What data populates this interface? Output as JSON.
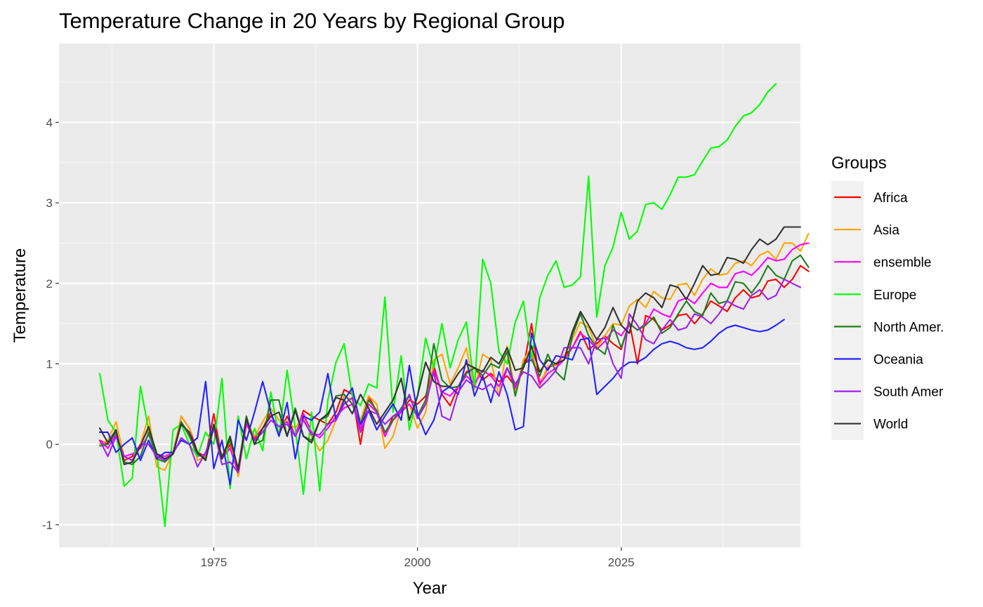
{
  "chart_data": {
    "type": "line",
    "title": "Temperature Change in 20 Years by Regional Group",
    "xlabel": "Year",
    "ylabel": "Temperature",
    "xlim": [
      1956,
      2047
    ],
    "ylim": [
      -1.28,
      4.98
    ],
    "x_ticks": [
      1975,
      2000,
      2025
    ],
    "x_tick_labels": [
      "1975",
      "2000",
      "2025"
    ],
    "y_ticks": [
      -1,
      0,
      1,
      2,
      3,
      4
    ],
    "y_tick_labels": [
      "-1",
      "0",
      "1",
      "2",
      "3",
      "4"
    ],
    "grid": true,
    "legend_title": "Groups",
    "legend_position": "right",
    "x_start": 1961,
    "x_end": 2044,
    "series": [
      {
        "name": "Africa",
        "color": "#FF0000",
        "values": [
          0.05,
          0.0,
          0.15,
          -0.2,
          -0.15,
          0.0,
          0.2,
          -0.15,
          -0.2,
          -0.12,
          0.35,
          0.2,
          -0.1,
          -0.15,
          0.38,
          -0.18,
          0.0,
          -0.35,
          0.25,
          0.08,
          0.2,
          0.4,
          0.12,
          0.35,
          0.1,
          0.42,
          0.35,
          0.3,
          0.25,
          0.4,
          0.68,
          0.62,
          0.0,
          0.6,
          0.4,
          0.1,
          0.35,
          0.4,
          0.55,
          0.5,
          0.6,
          0.98,
          0.62,
          0.48,
          0.72,
          0.9,
          0.95,
          0.8,
          0.88,
          0.78,
          0.85,
          0.72,
          0.95,
          1.5,
          0.75,
          0.95,
          1.0,
          1.1,
          1.2,
          1.4,
          1.18,
          1.25,
          1.35,
          1.25,
          1.18,
          1.52,
          1.0,
          1.6,
          1.55,
          1.42,
          1.48,
          1.6,
          1.62,
          1.5,
          1.62,
          1.78,
          1.72,
          1.65,
          1.82,
          1.92,
          1.82,
          1.85,
          2.03,
          2.05,
          1.95,
          2.05,
          2.22,
          2.15
        ]
      },
      {
        "name": "Asia",
        "color": "#FFA500",
        "values": [
          0.0,
          0.05,
          0.28,
          -0.15,
          -0.2,
          0.0,
          0.35,
          -0.28,
          -0.32,
          -0.1,
          0.35,
          0.2,
          -0.2,
          -0.15,
          0.25,
          -0.15,
          0.05,
          -0.4,
          0.3,
          0.1,
          0.28,
          0.45,
          0.3,
          0.28,
          0.2,
          0.35,
          0.1,
          -0.08,
          0.05,
          0.3,
          0.6,
          0.55,
          0.3,
          0.6,
          0.5,
          -0.05,
          0.1,
          0.45,
          0.5,
          0.2,
          0.4,
          1.05,
          1.12,
          0.75,
          0.95,
          1.2,
          0.68,
          1.12,
          1.05,
          0.6,
          1.22,
          0.65,
          1.05,
          1.2,
          0.72,
          0.98,
          0.98,
          1.1,
          1.3,
          1.52,
          1.45,
          1.2,
          1.35,
          1.5,
          1.48,
          1.72,
          1.8,
          1.7,
          1.9,
          1.82,
          1.8,
          1.98,
          2.0,
          1.85,
          2.05,
          2.18,
          2.1,
          2.12,
          2.25,
          2.28,
          2.22,
          2.35,
          2.4,
          2.3,
          2.5,
          2.5,
          2.4,
          2.62
        ]
      },
      {
        "name": "ensemble",
        "color": "#FF00FF",
        "values": [
          0.05,
          -0.05,
          0.12,
          -0.15,
          -0.12,
          -0.05,
          0.12,
          -0.12,
          -0.15,
          -0.1,
          0.28,
          0.12,
          -0.15,
          -0.12,
          0.22,
          -0.18,
          -0.05,
          -0.35,
          0.25,
          0.05,
          0.2,
          0.35,
          0.22,
          0.28,
          0.12,
          0.38,
          0.15,
          0.08,
          0.2,
          0.35,
          0.45,
          0.5,
          0.2,
          0.5,
          0.4,
          0.1,
          0.3,
          0.4,
          0.5,
          0.35,
          0.5,
          0.92,
          0.65,
          0.6,
          0.72,
          0.85,
          0.75,
          0.92,
          0.85,
          0.72,
          0.95,
          0.7,
          0.98,
          1.1,
          0.75,
          0.88,
          0.95,
          1.05,
          1.2,
          1.38,
          1.3,
          1.18,
          1.28,
          1.42,
          1.35,
          1.5,
          1.42,
          1.5,
          1.68,
          1.62,
          1.58,
          1.78,
          1.82,
          1.75,
          1.88,
          2.0,
          1.95,
          1.95,
          2.12,
          2.15,
          2.1,
          2.2,
          2.32,
          2.28,
          2.3,
          2.42,
          2.48,
          2.5
        ]
      },
      {
        "name": "Europe",
        "color": "#00FF00",
        "values": [
          0.88,
          0.3,
          0.15,
          -0.52,
          -0.42,
          0.72,
          0.18,
          -0.1,
          -1.02,
          0.18,
          0.25,
          0.0,
          -0.15,
          0.15,
          0.0,
          0.82,
          -0.55,
          0.35,
          -0.18,
          0.2,
          -0.08,
          0.65,
          0.1,
          0.92,
          0.2,
          -0.62,
          0.4,
          -0.58,
          0.55,
          1.02,
          1.25,
          0.6,
          0.48,
          0.75,
          0.7,
          1.83,
          0.4,
          1.1,
          0.18,
          0.6,
          1.32,
          0.95,
          1.5,
          0.95,
          1.3,
          1.52,
          0.7,
          2.3,
          2.0,
          1.15,
          1.0,
          1.52,
          1.78,
          1.05,
          1.82,
          2.1,
          2.28,
          1.95,
          1.98,
          2.08,
          3.33,
          1.58,
          2.22,
          2.45,
          2.88,
          2.55,
          2.65,
          2.98,
          3.0,
          2.92,
          3.1,
          3.32,
          3.32,
          3.35,
          3.52,
          3.68,
          3.7,
          3.78,
          3.95,
          4.08,
          4.12,
          4.22,
          4.38,
          4.48
        ]
      },
      {
        "name": "North Amer.",
        "color": "#1E7F1E",
        "values": [
          -0.02,
          0.0,
          0.15,
          -0.22,
          -0.25,
          -0.15,
          0.15,
          -0.18,
          -0.22,
          -0.12,
          0.28,
          0.1,
          -0.12,
          -0.18,
          0.2,
          -0.15,
          0.05,
          -0.3,
          0.35,
          0.0,
          0.05,
          0.55,
          0.55,
          0.1,
          0.45,
          0.1,
          0.05,
          0.3,
          0.35,
          0.6,
          0.62,
          0.5,
          0.25,
          0.55,
          0.42,
          0.15,
          0.3,
          0.45,
          0.6,
          0.35,
          0.55,
          1.25,
          0.8,
          0.7,
          0.72,
          0.88,
          0.95,
          0.85,
          1.0,
          0.95,
          1.15,
          0.6,
          1.0,
          1.05,
          0.85,
          1.12,
          0.9,
          0.8,
          1.35,
          1.62,
          1.35,
          1.2,
          1.12,
          1.48,
          1.2,
          1.5,
          1.42,
          1.48,
          1.58,
          1.38,
          1.45,
          1.62,
          1.78,
          1.65,
          1.6,
          1.88,
          1.75,
          1.78,
          2.02,
          2.0,
          1.88,
          2.02,
          2.22,
          2.1,
          2.05,
          2.28,
          2.35,
          2.2
        ]
      },
      {
        "name": "Oceania",
        "color": "#2222FF",
        "values": [
          0.15,
          0.15,
          -0.1,
          0.0,
          0.08,
          -0.2,
          0.05,
          -0.18,
          -0.1,
          -0.1,
          0.05,
          0.0,
          0.08,
          0.78,
          -0.3,
          0.05,
          -0.5,
          0.3,
          0.05,
          0.4,
          0.78,
          0.4,
          0.1,
          0.52,
          -0.18,
          0.35,
          0.3,
          0.4,
          0.88,
          0.3,
          0.55,
          0.7,
          0.25,
          0.42,
          0.18,
          0.35,
          0.5,
          0.3,
          0.98,
          0.38,
          0.12,
          0.3,
          0.65,
          0.72,
          0.62,
          1.05,
          0.6,
          0.85,
          0.52,
          0.9,
          0.62,
          0.18,
          0.22,
          1.38,
          1.05,
          0.92,
          1.1,
          1.08,
          1.05,
          1.3,
          1.32,
          0.62,
          0.72,
          0.82,
          0.95,
          1.02,
          1.02,
          1.08,
          1.18,
          1.25,
          1.28,
          1.25,
          1.2,
          1.18,
          1.2,
          1.28,
          1.38,
          1.45,
          1.48,
          1.45,
          1.42,
          1.4,
          1.42,
          1.48,
          1.55
        ]
      },
      {
        "name": "South Amer",
        "color": "#A020F0",
        "values": [
          0.05,
          -0.15,
          0.1,
          -0.15,
          -0.2,
          0.0,
          0.0,
          -0.15,
          -0.2,
          -0.12,
          0.08,
          0.0,
          -0.28,
          -0.1,
          0.2,
          -0.25,
          -0.22,
          -0.35,
          0.3,
          0.05,
          0.15,
          0.3,
          0.22,
          0.25,
          0.1,
          0.3,
          0.12,
          0.12,
          0.25,
          0.3,
          0.5,
          0.58,
          0.15,
          0.42,
          0.38,
          0.25,
          0.35,
          0.42,
          0.62,
          0.32,
          0.5,
          0.9,
          0.35,
          0.3,
          0.65,
          0.8,
          0.72,
          0.68,
          0.75,
          0.6,
          0.95,
          0.75,
          0.9,
          0.85,
          0.7,
          0.8,
          0.92,
          1.2,
          1.2,
          1.2,
          1.0,
          1.3,
          1.32,
          1.0,
          0.82,
          1.62,
          1.48,
          1.3,
          1.25,
          1.42,
          1.55,
          1.42,
          1.45,
          1.62,
          1.58,
          1.5,
          1.62,
          1.78,
          1.72,
          1.68,
          1.85,
          1.92,
          1.8,
          1.85,
          2.05,
          2.0,
          1.95
        ]
      },
      {
        "name": "World",
        "color": "#333333",
        "values": [
          0.2,
          0.02,
          0.18,
          -0.25,
          -0.22,
          -0.02,
          0.22,
          -0.12,
          -0.18,
          -0.12,
          0.25,
          0.15,
          -0.1,
          -0.2,
          0.25,
          -0.18,
          0.1,
          -0.32,
          0.32,
          0.0,
          0.2,
          0.35,
          0.4,
          0.1,
          0.42,
          0.1,
          0.02,
          0.3,
          0.38,
          0.58,
          0.55,
          0.38,
          0.62,
          0.45,
          0.25,
          0.4,
          0.55,
          0.82,
          0.3,
          0.6,
          1.02,
          0.78,
          0.72,
          0.72,
          0.88,
          1.0,
          0.95,
          0.9,
          1.08,
          1.0,
          1.2,
          0.92,
          0.95,
          1.22,
          0.9,
          1.05,
          1.0,
          1.05,
          1.4,
          1.65,
          1.48,
          1.3,
          1.45,
          1.7,
          1.48,
          1.38,
          1.78,
          1.88,
          1.82,
          1.7,
          1.98,
          1.95,
          1.8,
          2.0,
          2.22,
          2.1,
          2.12,
          2.32,
          2.3,
          2.25,
          2.42,
          2.55,
          2.48,
          2.55,
          2.7,
          2.7,
          2.7
        ]
      }
    ]
  }
}
